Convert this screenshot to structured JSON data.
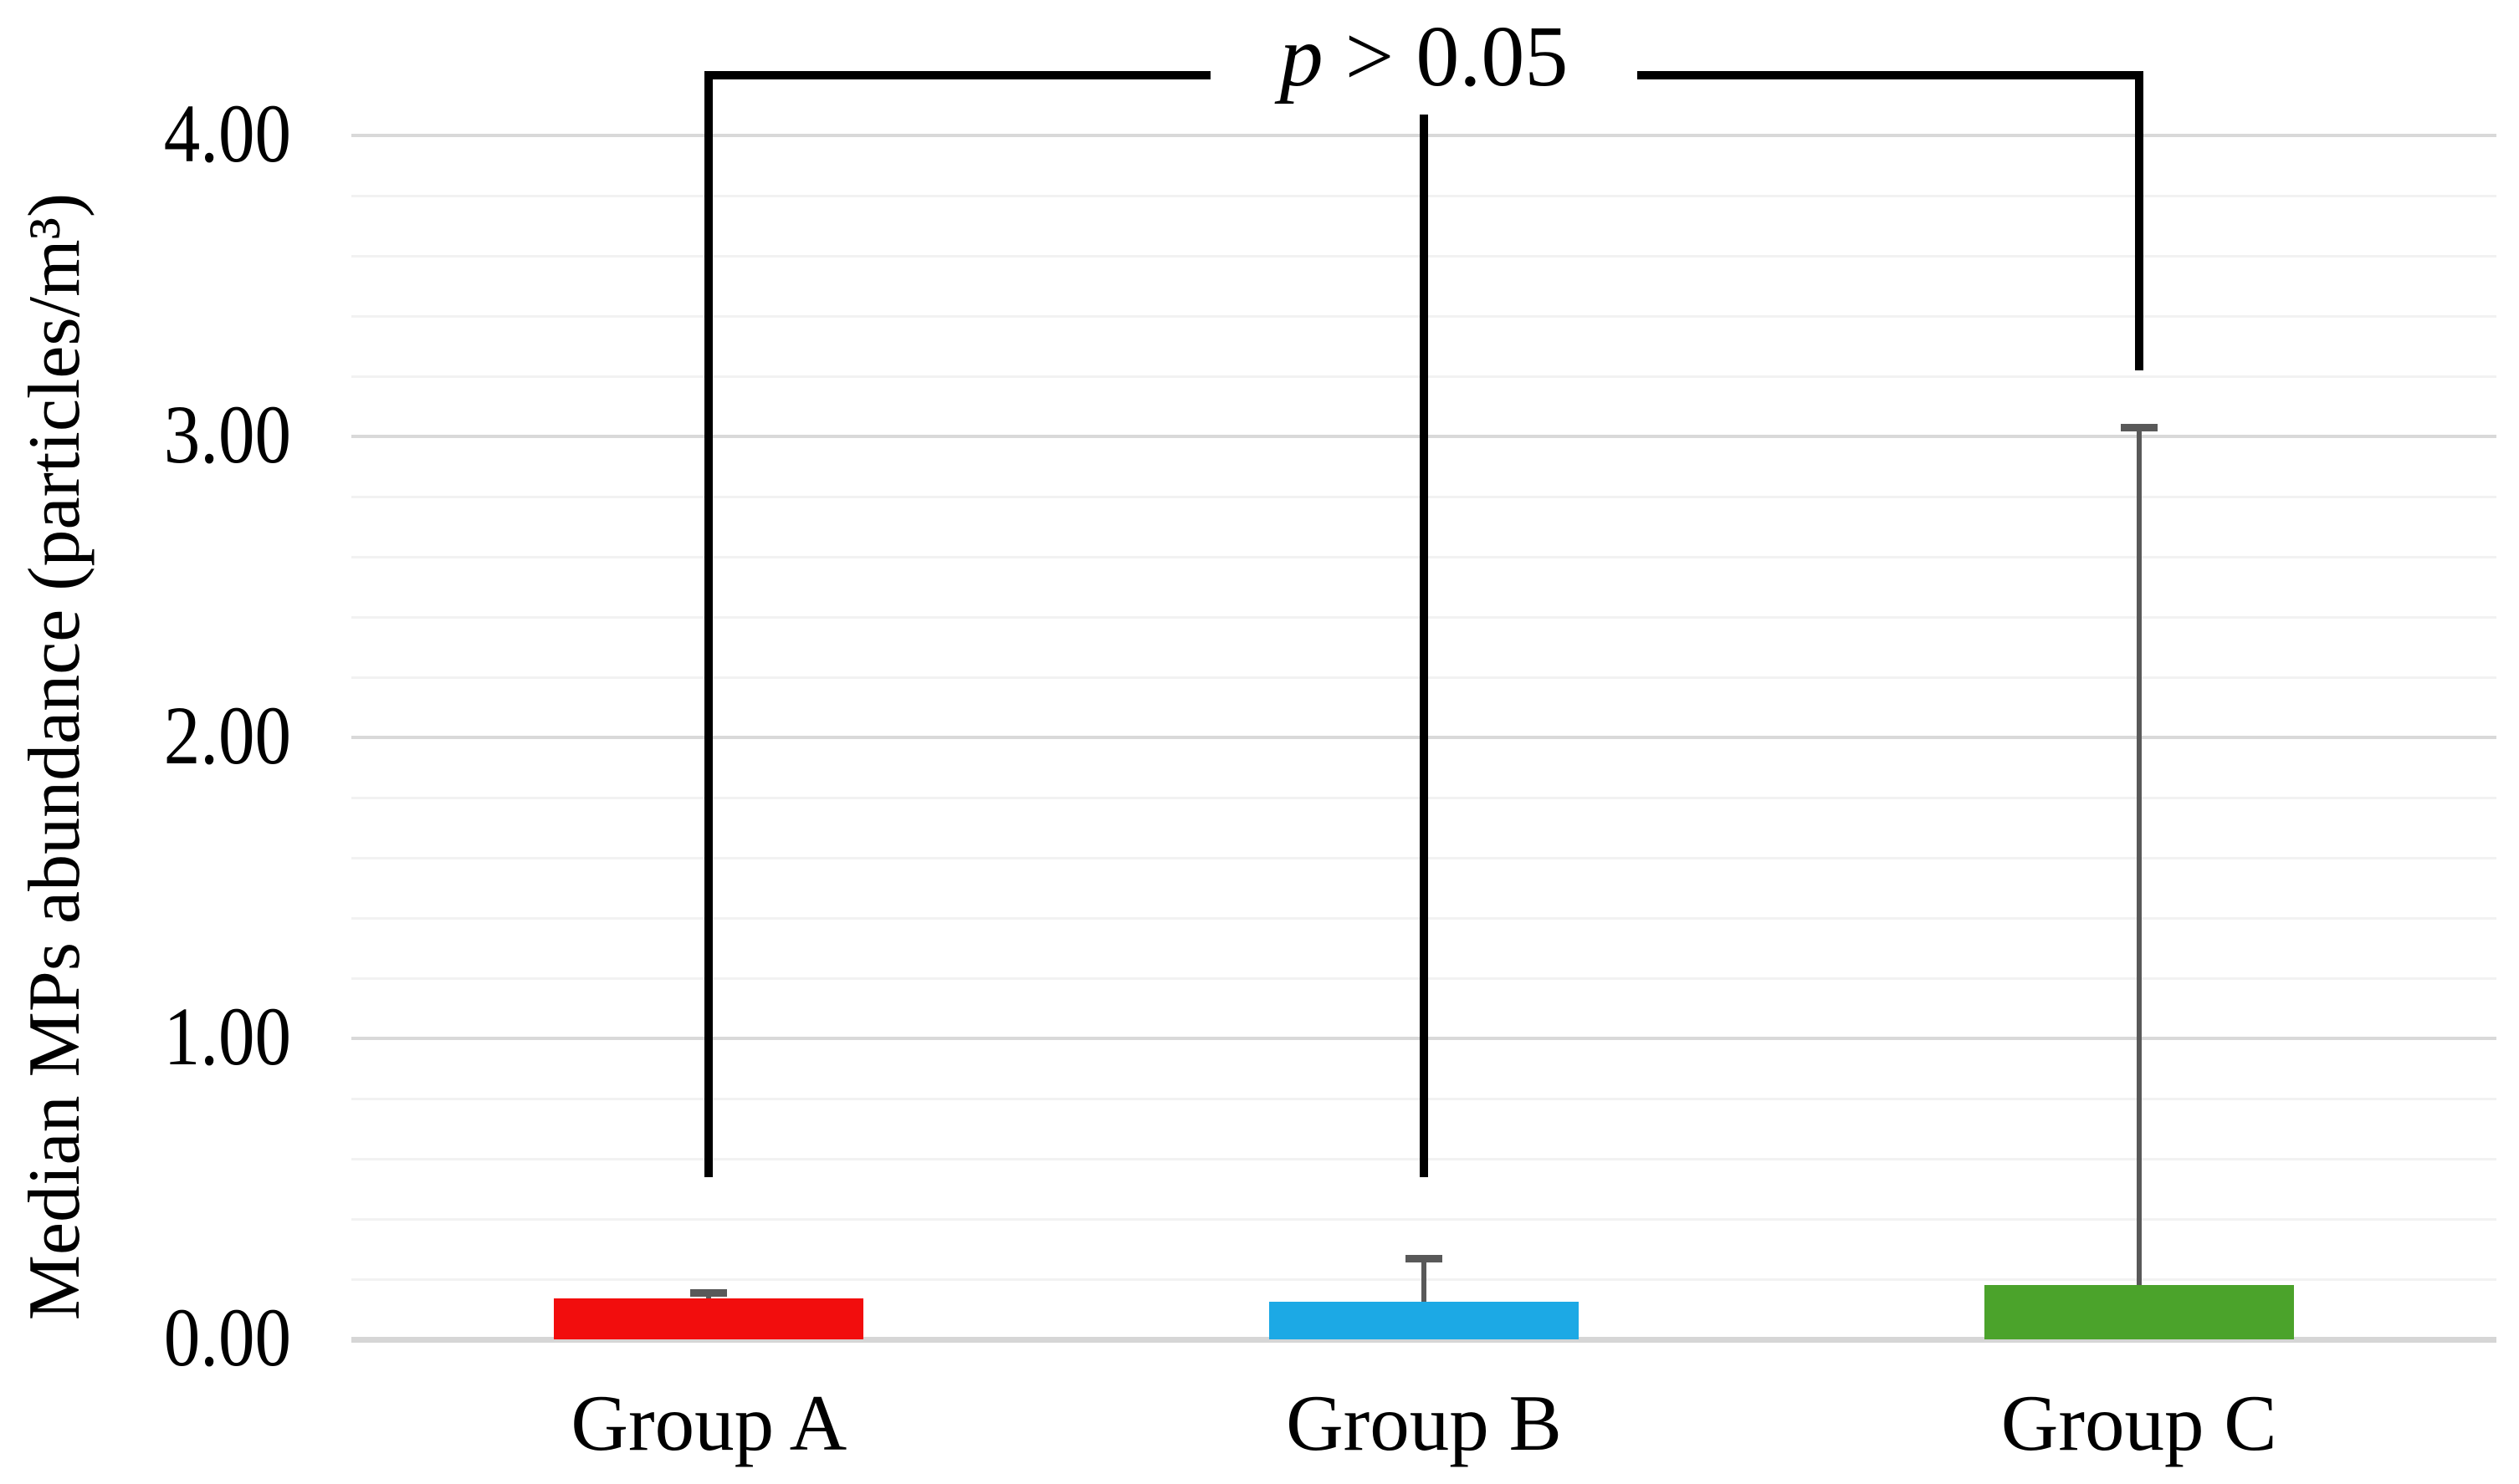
{
  "chart_data": {
    "type": "bar",
    "title": "",
    "categories": [
      "Group A",
      "Group B",
      "Group C"
    ],
    "values": [
      0.135,
      0.125,
      0.18
    ],
    "error_top_values": [
      0.155,
      0.27,
      3.03
    ],
    "bar_colors": [
      "#F20D0D",
      "#1CA9E5",
      "#4BA32B"
    ],
    "error_bar_color": "#595959",
    "xlabel": "",
    "ylabel": "Median MPs abundance (particles/m³)",
    "ylim": [
      0,
      4.2
    ],
    "yticks": [
      {
        "value": 0,
        "label": "0.00"
      },
      {
        "value": 1,
        "label": "1.00"
      },
      {
        "value": 2,
        "label": "2.00"
      },
      {
        "value": 3,
        "label": "3.00"
      },
      {
        "value": 4,
        "label": "4.00"
      }
    ],
    "minor_gridline_step": 0.2,
    "grid": {
      "minor_color": "#F2F2F2",
      "major_color": "#D9D9D9",
      "baseline_color": "#D6D6D6",
      "shown": true
    },
    "legend": "none",
    "annotation": {
      "text_var": "p",
      "text_rest": " > 0.05",
      "full_text": "p > 0.05",
      "bracket_color": "#000000",
      "bracket_top_value": 4.2,
      "bracket_groups": [
        "Group A",
        "Group B",
        "Group C"
      ],
      "bracket_bottom_values": [
        0.54,
        0.54,
        3.22
      ],
      "mid_line_top_value": 4.07
    }
  }
}
